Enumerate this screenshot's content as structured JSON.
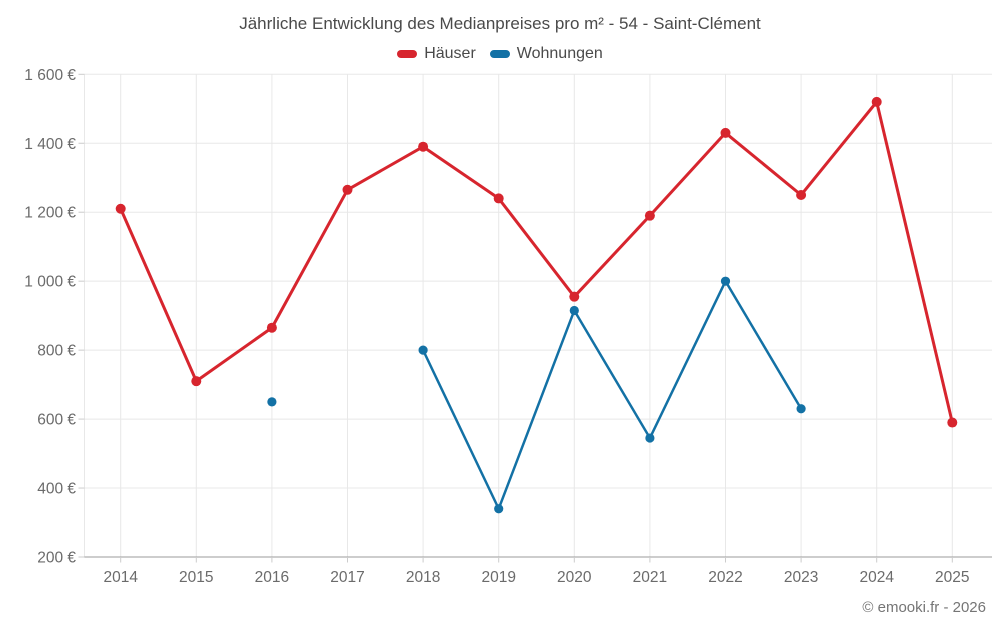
{
  "title": "Jährliche Entwicklung des Medianpreises pro m² - 54 - Saint-Clément",
  "legend": {
    "items": [
      {
        "label": "Häuser",
        "color": "#d7252e"
      },
      {
        "label": "Wohnungen",
        "color": "#1371a5"
      }
    ]
  },
  "footer": "© emooki.fr - 2026",
  "colors": {
    "grid": "#e8e8e8",
    "axis_line": "#9b9b9b",
    "tick": "#cccccc",
    "axis_text": "#6b6b6b",
    "title_text": "#4a4a4a",
    "footer_text": "#757575",
    "hauser": "#d7252e",
    "wohnungen": "#1371a5"
  },
  "chart_data": {
    "type": "line",
    "title": "Jährliche Entwicklung des Medianpreises pro m² - 54 - Saint-Clément",
    "x": [
      "2014",
      "2015",
      "2016",
      "2017",
      "2018",
      "2019",
      "2020",
      "2021",
      "2022",
      "2023",
      "2024",
      "2025"
    ],
    "series": [
      {
        "name": "Häuser",
        "color": "#d7252e",
        "values": [
          1210,
          710,
          865,
          1265,
          1390,
          1240,
          955,
          1190,
          1430,
          1250,
          1520,
          590
        ]
      },
      {
        "name": "Wohnungen",
        "color": "#1371a5",
        "values": [
          null,
          null,
          650,
          null,
          800,
          340,
          915,
          545,
          1000,
          630,
          null,
          null
        ]
      }
    ],
    "ylim": [
      200,
      1600
    ],
    "ytick_step": 200,
    "yticklabels": [
      "200 €",
      "400 €",
      "600 €",
      "800 €",
      "1 000 €",
      "1 200 €",
      "1 400 €",
      "1 600 €"
    ],
    "ylabel": "",
    "xlabel": "",
    "grid": true,
    "legend_position": "top"
  }
}
